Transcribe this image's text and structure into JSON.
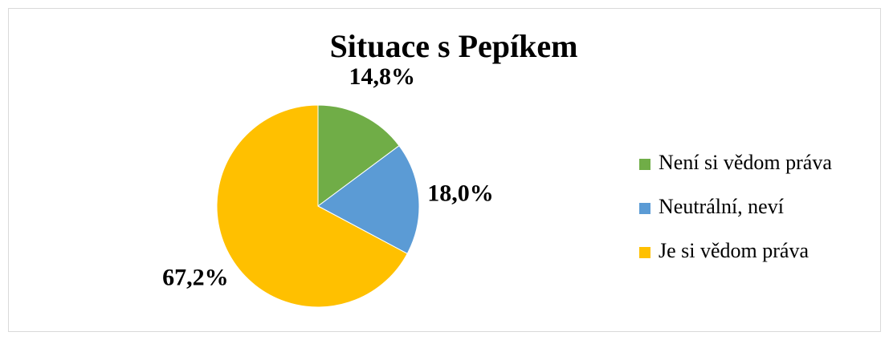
{
  "chart_data": {
    "type": "pie",
    "title": "Situace s Pepíkem",
    "categories": [
      "Není si vědom práva",
      "Neutrální, neví",
      "Je si vědom práva"
    ],
    "values": [
      14.8,
      18.0,
      67.2
    ],
    "value_labels": [
      "14,8%",
      "18,0%",
      "67,2%"
    ],
    "colors": [
      "#70ad47",
      "#5b9bd5",
      "#ffc000"
    ],
    "legend": "right"
  }
}
